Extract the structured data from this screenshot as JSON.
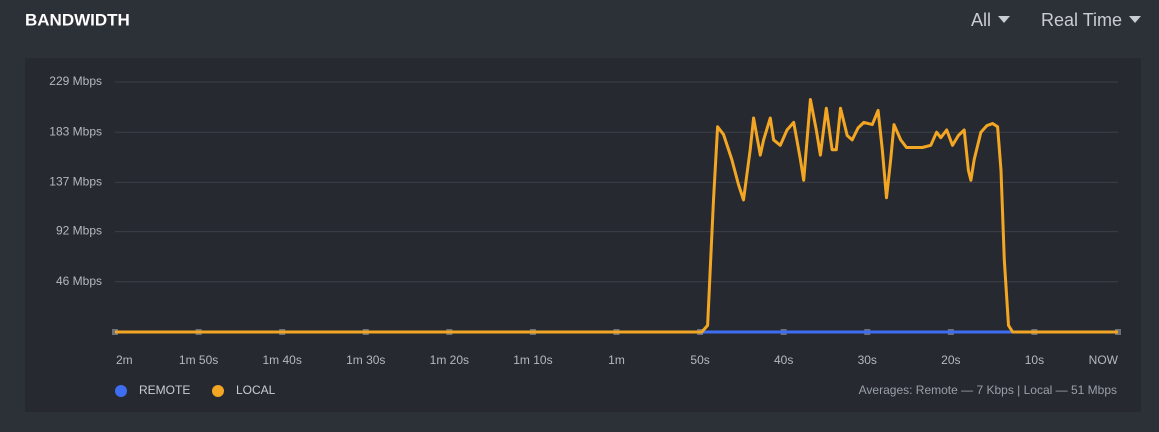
{
  "header": {
    "title": "BANDWIDTH",
    "filter": "All",
    "range": "Real Time"
  },
  "chart_data": {
    "type": "line",
    "x": [
      -120,
      -49.8,
      -49.1,
      -48.4,
      -47.9,
      -47.2,
      -46.2,
      -45.4,
      -44.8,
      -44.0,
      -43.6,
      -42.8,
      -42.4,
      -41.6,
      -41.2,
      -40.4,
      -39.6,
      -38.8,
      -38.0,
      -37.6,
      -36.8,
      -36.1,
      -35.6,
      -34.9,
      -34.2,
      -33.7,
      -33.2,
      -32.4,
      -31.8,
      -31.1,
      -30.4,
      -29.4,
      -28.7,
      -28.2,
      -27.7,
      -27.2,
      -26.8,
      -26.0,
      -25.3,
      -24.4,
      -23.4,
      -22.4,
      -21.7,
      -21.2,
      -20.5,
      -19.8,
      -19.1,
      -18.4,
      -17.9,
      -17.6,
      -17.2,
      -16.4,
      -15.7,
      -15.0,
      -14.4,
      -14.0,
      -13.6,
      -13.1,
      -12.6,
      0
    ],
    "series": [
      {
        "name": "REMOTE",
        "color": "#3d6ef2",
        "values": [
          0,
          0,
          0,
          0,
          0,
          0,
          0,
          0,
          0,
          0,
          0,
          0,
          0,
          0,
          0,
          0,
          0,
          0,
          0,
          0,
          0,
          0,
          0,
          0,
          0,
          0,
          0,
          0,
          0,
          0,
          0,
          0,
          0,
          0,
          0,
          0,
          0,
          0,
          0,
          0,
          0,
          0,
          0,
          0,
          0,
          0,
          0,
          0,
          0,
          0,
          0,
          0,
          0,
          0,
          0,
          0,
          0,
          0,
          0,
          0
        ]
      },
      {
        "name": "LOCAL",
        "color": "#f2a623",
        "values": [
          0,
          0,
          6,
          121,
          188,
          181,
          158,
          135,
          121,
          167,
          196,
          162,
          176,
          196,
          176,
          171,
          185,
          192,
          158,
          139,
          213,
          185,
          162,
          205,
          167,
          167,
          205,
          180,
          176,
          187,
          192,
          190,
          203,
          167,
          123,
          158,
          190,
          176,
          169,
          169,
          169,
          171,
          183,
          178,
          185,
          171,
          180,
          185,
          148,
          139,
          158,
          183,
          189,
          191,
          188,
          148,
          66,
          6,
          0,
          0
        ]
      }
    ],
    "xlim": [
      -120,
      0
    ],
    "xticks": [
      {
        "value": -120,
        "label": "2m"
      },
      {
        "value": -110,
        "label": "1m 50s"
      },
      {
        "value": -100,
        "label": "1m 40s"
      },
      {
        "value": -90,
        "label": "1m 30s"
      },
      {
        "value": -80,
        "label": "1m 20s"
      },
      {
        "value": -70,
        "label": "1m 10s"
      },
      {
        "value": -60,
        "label": "1m"
      },
      {
        "value": -50,
        "label": "50s"
      },
      {
        "value": -40,
        "label": "40s"
      },
      {
        "value": -30,
        "label": "30s"
      },
      {
        "value": -20,
        "label": "20s"
      },
      {
        "value": -10,
        "label": "10s"
      },
      {
        "value": 0,
        "label": "NOW"
      }
    ],
    "ylim": [
      0,
      229
    ],
    "yticks": [
      {
        "value": 46,
        "label": "46 Mbps"
      },
      {
        "value": 92,
        "label": "92 Mbps"
      },
      {
        "value": 137,
        "label": "137 Mbps"
      },
      {
        "value": 183,
        "label": "183 Mbps"
      },
      {
        "value": 229,
        "label": "229 Mbps"
      }
    ],
    "grid": true,
    "averages": "Averages: Remote — 7 Kbps | Local — 51 Mbps"
  }
}
